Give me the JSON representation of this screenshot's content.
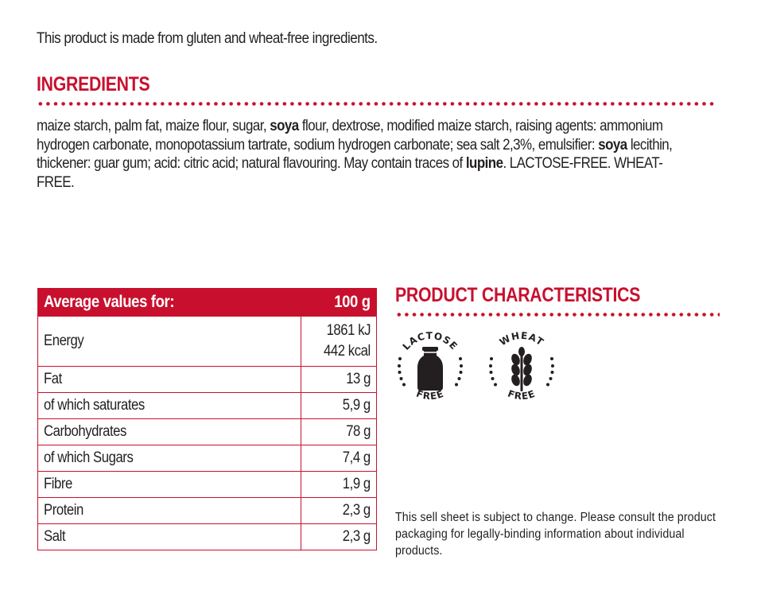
{
  "intro": "This product is made from gluten and wheat-free ingredients.",
  "ingredients": {
    "heading": "INGREDIENTS",
    "segments": [
      {
        "text": "maize starch, palm fat, maize flour, sugar, ",
        "bold": false
      },
      {
        "text": "soya",
        "bold": true
      },
      {
        "text": " flour, dextrose, modified maize starch, raising agents: ammonium hydrogen carbonate,  monopotassium tartrate, sodium hydrogen carbonate; sea salt 2,3%, emulsifier: ",
        "bold": false
      },
      {
        "text": "soya",
        "bold": true
      },
      {
        "text": " lecithin, thickener: guar gum; acid: citric  acid; natural flavouring. May contain traces of ",
        "bold": false
      },
      {
        "text": "lupine",
        "bold": true
      },
      {
        "text": ". LACTOSE-FREE. WHEAT-FREE.",
        "bold": false
      }
    ]
  },
  "nutrition": {
    "header_label": "Average values for:",
    "header_value": "100 g",
    "energy": {
      "label": "Energy",
      "kj": "1861 kJ",
      "kcal": "442 kcal"
    },
    "rows": [
      {
        "label": "Fat",
        "value": "13 g"
      },
      {
        "label": "of which saturates",
        "value": "5,9 g"
      },
      {
        "label": "Carbohydrates",
        "value": "78 g"
      },
      {
        "label": "of which Sugars",
        "value": "7,4 g"
      },
      {
        "label": "Fibre",
        "value": "1,9 g"
      },
      {
        "label": "Protein",
        "value": "2,3 g"
      },
      {
        "label": "Salt",
        "value": "2,3 g"
      }
    ]
  },
  "characteristics": {
    "heading": "PRODUCT CHARACTERISTICS",
    "badges": [
      {
        "top": "LACTOSE",
        "bottom": "FREE",
        "icon": "milk-bottle-icon"
      },
      {
        "top": "WHEAT",
        "bottom": "FREE",
        "icon": "wheat-ear-icon"
      }
    ]
  },
  "disclaimer": "This sell sheet is subject to change. Please consult the product packaging for legally-binding information about individual products.",
  "colors": {
    "accent": "#c8102e",
    "text": "#231f20"
  }
}
